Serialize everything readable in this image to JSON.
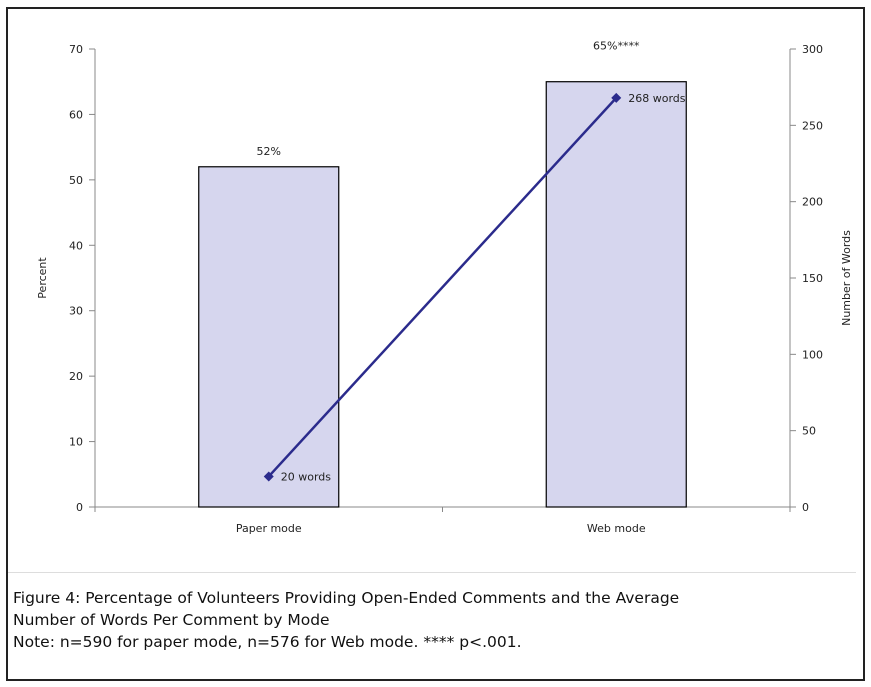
{
  "chart_data": {
    "type": "bar+line",
    "categories": [
      "Paper mode",
      "Web mode"
    ],
    "bars": {
      "axis": "left",
      "values": [
        52,
        65
      ],
      "labels": [
        "52%",
        "65%****"
      ],
      "color": "#d6d6ee"
    },
    "line": {
      "axis": "right",
      "values": [
        20,
        268
      ],
      "labels": [
        "20 words",
        "268 words"
      ],
      "color": "#2b2b8c"
    },
    "ylabel": "Percent",
    "ylim": [
      0,
      70
    ],
    "yticks": [
      "0",
      "10",
      "20",
      "30",
      "40",
      "50",
      "60",
      "70"
    ],
    "y2label": "Number of Words",
    "y2lim": [
      0,
      300
    ],
    "y2ticks": [
      "0",
      "50",
      "100",
      "150",
      "200",
      "250",
      "300"
    ],
    "grid": false,
    "legend": "none"
  },
  "caption": {
    "line1": "Figure 4:  Percentage of Volunteers Providing Open-Ended Comments and the Average",
    "line2": "Number of Words Per Comment by Mode",
    "note": "Note:  n=590 for paper mode, n=576 for Web mode. **** p<.001."
  }
}
